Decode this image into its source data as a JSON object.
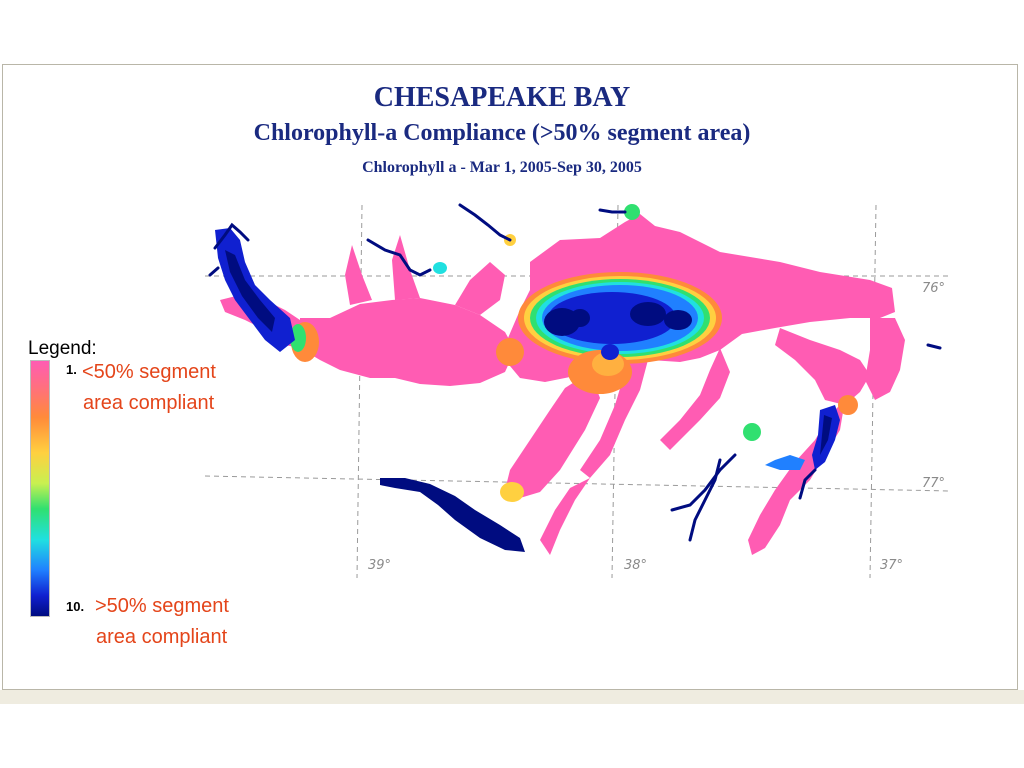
{
  "title": "CHESAPEAKE BAY",
  "subtitle": "Chlorophyll-a Compliance (>50% segment area)",
  "date_range": "Chlorophyll a - Mar 1, 2005-Sep 30, 2005",
  "legend": {
    "title": "Legend:",
    "low_tick": "1.",
    "low_label_line1": "<50% segment",
    "low_label_line2": "area compliant",
    "high_tick": "10.",
    "high_label_line1": ">50% segment",
    "high_label_line2": "area compliant",
    "gradient_colors": [
      "#ff5cb3",
      "#ff8a3a",
      "#ffd040",
      "#30e070",
      "#20e0e0",
      "#2080ff",
      "#000c80"
    ]
  },
  "grid_labels": {
    "lat_76": "76°",
    "lat_77": "77°",
    "lon_39": "39°",
    "lon_38": "38°",
    "lon_37": "37°"
  },
  "colors": {
    "title": "#1a2a80",
    "legend_text": "#e4451a",
    "noncompliant": "#ff5cb3",
    "compliant": "#000c80"
  }
}
